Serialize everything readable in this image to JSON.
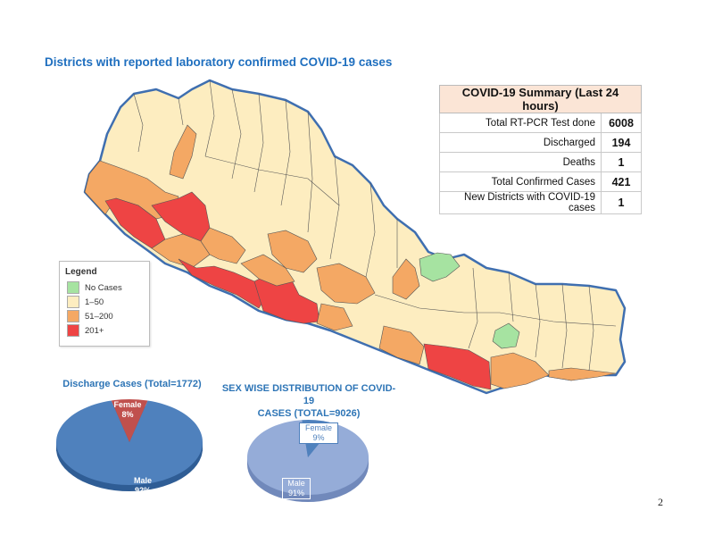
{
  "title": "Districts with reported laboratory confirmed COVID-19 cases",
  "summary": {
    "heading": "COVID-19 Summary (Last 24 hours)",
    "rows": [
      {
        "label": "Total RT-PCR Test done",
        "value": "6008"
      },
      {
        "label": "Discharged",
        "value": "194"
      },
      {
        "label": "Deaths",
        "value": "1"
      },
      {
        "label": "Total Confirmed Cases",
        "value": "421"
      },
      {
        "label": "New Districts with COVID-19 cases",
        "value": "1"
      }
    ]
  },
  "legend": {
    "heading": "Legend",
    "items": [
      {
        "label": "No Cases",
        "color": "#a6e3a1"
      },
      {
        "label": "1–50",
        "color": "#fdedc0"
      },
      {
        "label": "51–200",
        "color": "#f4a864"
      },
      {
        "label": "201+",
        "color": "#ee4444"
      }
    ]
  },
  "discharge_chart": {
    "title": "Discharge Cases (Total=1772)",
    "slices": [
      {
        "label": "Male",
        "pct": "92%",
        "value": 92,
        "color": "#4f81bd"
      },
      {
        "label": "Female",
        "pct": "8%",
        "value": 8,
        "color": "#c0504d"
      }
    ]
  },
  "sex_chart": {
    "title_line1": "SEX WISE DISTRIBUTION OF COVID-19",
    "title_line2": "CASES (TOTAL=9026)",
    "slices": [
      {
        "label": "Male",
        "pct": "91%",
        "value": 91,
        "color": "#95acd8"
      },
      {
        "label": "Female",
        "pct": "9%",
        "value": 9,
        "color": "#4f81bd"
      }
    ]
  },
  "page_number": "2"
}
